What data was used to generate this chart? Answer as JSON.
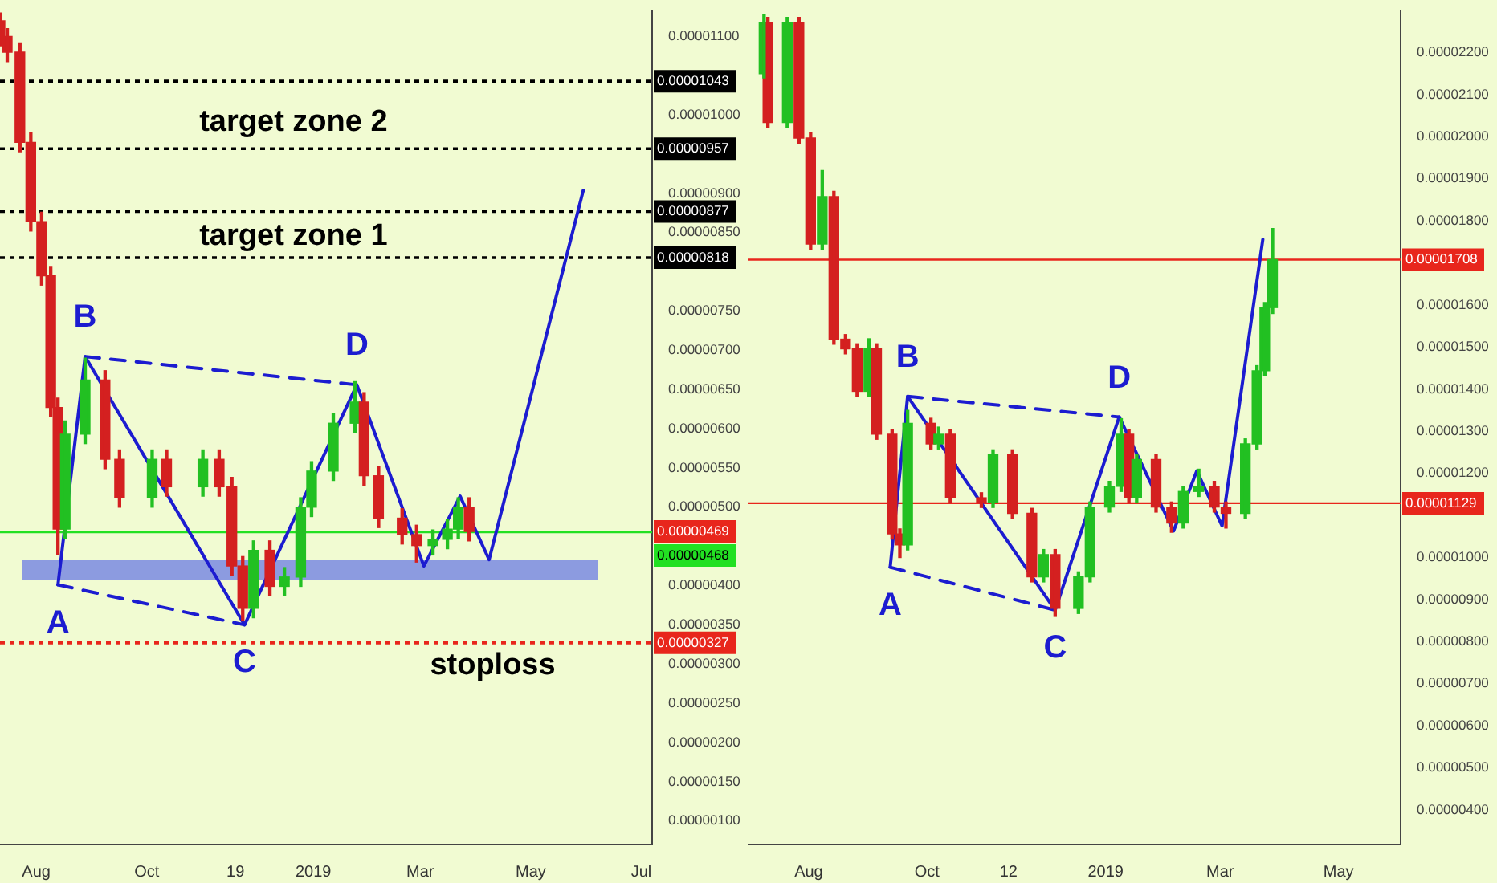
{
  "chart_data": [
    {
      "type": "candlestick",
      "x": [
        "2018-07-12",
        "2018-07-16",
        "2018-07-23",
        "2018-07-29",
        "2018-08-04",
        "2018-08-09",
        "2018-08-13",
        "2018-08-17",
        "2018-08-28",
        "2018-09-08",
        "2018-09-16",
        "2018-10-04",
        "2018-10-12",
        "2018-11-01",
        "2018-11-10",
        "2018-11-17",
        "2018-11-23",
        "2018-11-29",
        "2018-12-08",
        "2018-12-16",
        "2018-12-25",
        "2018-12-31",
        "2019-01-12",
        "2019-01-24",
        "2019-01-29",
        "2019-02-06",
        "2019-02-19",
        "2019-02-27",
        "2019-03-08",
        "2019-03-16",
        "2019-03-22",
        "2019-03-28"
      ],
      "ohlc": [
        [
          1.12e-05,
          1.13e-05,
          1.088e-05,
          1.1e-05
        ],
        [
          1.1e-05,
          1.11e-05,
          1.068e-05,
          1.08e-05
        ],
        [
          1.08e-05,
          1.092e-05,
          9.53e-06,
          9.65e-06
        ],
        [
          9.65e-06,
          9.77e-06,
          8.52e-06,
          8.64e-06
        ],
        [
          8.64e-06,
          8.76e-06,
          7.83e-06,
          7.95e-06
        ],
        [
          7.95e-06,
          8.07e-06,
          6.15e-06,
          6.27e-06
        ],
        [
          6.27e-06,
          6.39e-06,
          4.4e-06,
          4.72e-06
        ],
        [
          4.72e-06,
          6.1e-06,
          4.6e-06,
          5.93e-06
        ],
        [
          5.93e-06,
          6.9e-06,
          5.81e-06,
          6.62e-06
        ],
        [
          6.62e-06,
          6.74e-06,
          5.49e-06,
          5.61e-06
        ],
        [
          5.61e-06,
          5.73e-06,
          5e-06,
          5.12e-06
        ],
        [
          5.12e-06,
          5.73e-06,
          5e-06,
          5.61e-06
        ],
        [
          5.61e-06,
          5.73e-06,
          5.14e-06,
          5.26e-06
        ],
        [
          5.26e-06,
          5.73e-06,
          5.14e-06,
          5.61e-06
        ],
        [
          5.61e-06,
          5.73e-06,
          5.14e-06,
          5.26e-06
        ],
        [
          5.26e-06,
          5.38e-06,
          4.13e-06,
          4.25e-06
        ],
        [
          4.25e-06,
          4.37e-06,
          3.55e-06,
          3.71e-06
        ],
        [
          3.71e-06,
          4.57e-06,
          3.59e-06,
          4.45e-06
        ],
        [
          4.45e-06,
          4.57e-06,
          3.87e-06,
          3.99e-06
        ],
        [
          3.99e-06,
          4.23e-06,
          3.87e-06,
          4.11e-06
        ],
        [
          4.11e-06,
          5.12e-06,
          3.99e-06,
          5e-06
        ],
        [
          5e-06,
          5.58e-06,
          4.88e-06,
          5.46e-06
        ],
        [
          5.46e-06,
          6.19e-06,
          5.34e-06,
          6.07e-06
        ],
        [
          6.07e-06,
          6.6e-06,
          5.95e-06,
          6.34e-06
        ],
        [
          6.34e-06,
          6.46e-06,
          5.28e-06,
          5.4e-06
        ],
        [
          5.4e-06,
          5.52e-06,
          4.74e-06,
          4.86e-06
        ],
        [
          4.86e-06,
          4.98e-06,
          4.53e-06,
          4.65e-06
        ],
        [
          4.65e-06,
          4.77e-06,
          4.3e-06,
          4.51e-06
        ],
        [
          4.51e-06,
          4.71e-06,
          4.39e-06,
          4.59e-06
        ],
        [
          4.59e-06,
          4.84e-06,
          4.47e-06,
          4.72e-06
        ],
        [
          4.72e-06,
          5.12e-06,
          4.6e-06,
          5e-06
        ],
        [
          5e-06,
          5.12e-06,
          4.57e-06,
          4.69e-06
        ]
      ],
      "xlim": [
        "2018-07-12",
        "2019-07-07"
      ],
      "xticks": [
        {
          "value": "2018-08-01",
          "label": "Aug"
        },
        {
          "value": "2018-10-01",
          "label": "Oct"
        },
        {
          "value": "2018-11-19",
          "label": "19"
        },
        {
          "value": "2019-01-01",
          "label": "2019"
        },
        {
          "value": "2019-03-01",
          "label": "Mar"
        },
        {
          "value": "2019-05-01",
          "label": "May"
        },
        {
          "value": "2019-07-01",
          "label": "Jul"
        }
      ],
      "ylim": [
        7e-07,
        1.132e-05
      ],
      "yticks": [
        {
          "value": 1e-06,
          "label": "0.00000100"
        },
        {
          "value": 1.5e-06,
          "label": "0.00000150"
        },
        {
          "value": 2e-06,
          "label": "0.00000200"
        },
        {
          "value": 2.5e-06,
          "label": "0.00000250"
        },
        {
          "value": 3e-06,
          "label": "0.00000300"
        },
        {
          "value": 3.5e-06,
          "label": "0.00000350"
        },
        {
          "value": 4e-06,
          "label": "0.00000400"
        },
        {
          "value": 5e-06,
          "label": "0.00000500"
        },
        {
          "value": 5.5e-06,
          "label": "0.00000550"
        },
        {
          "value": 6e-06,
          "label": "0.00000600"
        },
        {
          "value": 6.5e-06,
          "label": "0.00000650"
        },
        {
          "value": 7e-06,
          "label": "0.00000700"
        },
        {
          "value": 7.5e-06,
          "label": "0.00000750"
        },
        {
          "value": 8.5e-06,
          "label": "0.00000850"
        },
        {
          "value": 9e-06,
          "label": "0.00000900"
        },
        {
          "value": 1e-05,
          "label": "0.00001000"
        },
        {
          "value": 1.1e-05,
          "label": "0.00001100"
        }
      ],
      "series": [
        {
          "type": "line",
          "color": "#1c1cd0",
          "x": [
            "2018-08-13",
            "2018-08-28",
            "2018-11-24",
            "2019-01-25",
            "2019-03-03",
            "2019-03-23",
            "2019-04-08",
            "2019-05-30"
          ],
          "values": [
            4.01e-06,
            6.92e-06,
            3.5e-06,
            6.56e-06,
            4.25e-06,
            5.14e-06,
            4.33e-06,
            9.04e-06
          ]
        },
        {
          "type": "line",
          "color": "#1c1cd0",
          "line_style": "dashed",
          "x": [
            "2018-08-28",
            "2019-01-25"
          ],
          "values": [
            6.92e-06,
            6.56e-06
          ]
        },
        {
          "type": "line",
          "color": "#1c1cd0",
          "line_style": "dashed",
          "x": [
            "2018-08-13",
            "2018-11-24"
          ],
          "values": [
            4.01e-06,
            3.5e-06
          ]
        }
      ],
      "ref_lines": [
        {
          "axis": "y",
          "value": 1.043e-05,
          "label": "0.00001043",
          "color": "#000000",
          "line_style": "dotted"
        },
        {
          "axis": "y",
          "value": 9.57e-06,
          "label": "0.00000957",
          "color": "#000000",
          "line_style": "dotted"
        },
        {
          "axis": "y",
          "value": 8.77e-06,
          "label": "0.00000877",
          "color": "#000000",
          "line_style": "dotted"
        },
        {
          "axis": "y",
          "value": 8.18e-06,
          "label": "0.00000818",
          "color": "#000000",
          "line_style": "dotted"
        },
        {
          "axis": "y",
          "value": 4.69e-06,
          "label": "0.00000469",
          "color": "#e8261c",
          "line_style": "solid"
        },
        {
          "axis": "y",
          "value": 4.68e-06,
          "label": "0.00000468",
          "color": "#22e022",
          "line_style": "solid"
        },
        {
          "axis": "y",
          "value": 3.27e-06,
          "label": "0.00000327",
          "color": "#e8261c",
          "line_style": "dotted"
        }
      ],
      "bands": [
        {
          "axis": "y",
          "from": 4.07e-06,
          "to": 4.33e-06,
          "color": "#8c9be0"
        }
      ],
      "annotations": [
        "target zone 2",
        "target zone 1",
        {
          "text": "stoploss",
          "x": "2019-04-10",
          "y": 3.27e-06
        },
        {
          "text": "A",
          "x": "2018-08-13",
          "y": 4.01e-06
        },
        {
          "text": "B",
          "x": "2018-08-28",
          "y": 6.92e-06
        },
        {
          "text": "C",
          "x": "2018-11-24",
          "y": 3.5e-06
        },
        {
          "text": "D",
          "x": "2019-01-25",
          "y": 6.56e-06
        }
      ]
    },
    {
      "type": "candlestick",
      "x": [
        "2018-07-09",
        "2018-07-11",
        "2018-07-21",
        "2018-07-27",
        "2018-08-02",
        "2018-08-08",
        "2018-08-14",
        "2018-08-20",
        "2018-08-26",
        "2018-09-01",
        "2018-09-05",
        "2018-09-13",
        "2018-09-17",
        "2018-09-21",
        "2018-10-03",
        "2018-10-07",
        "2018-10-13",
        "2018-10-29",
        "2018-11-04",
        "2018-11-14",
        "2018-11-24",
        "2018-11-30",
        "2018-12-06",
        "2018-12-18",
        "2018-12-24",
        "2019-01-03",
        "2019-01-09",
        "2019-01-13",
        "2019-01-17",
        "2019-01-27",
        "2019-02-04",
        "2019-02-10",
        "2019-02-18",
        "2019-02-26",
        "2019-03-04",
        "2019-03-14",
        "2019-03-20",
        "2019-03-24",
        "2019-03-28"
      ],
      "ohlc": [
        [
          2.15e-05,
          2.29e-05,
          2.14e-05,
          2.272e-05
        ],
        [
          2.272e-05,
          2.284e-05,
          2.022e-05,
          2.034e-05
        ],
        [
          2.034e-05,
          2.284e-05,
          2.022e-05,
          2.272e-05
        ],
        [
          2.272e-05,
          2.284e-05,
          1.985e-05,
          1.997e-05
        ],
        [
          1.997e-05,
          2.009e-05,
          1.733e-05,
          1.745e-05
        ],
        [
          1.745e-05,
          1.92e-05,
          1.733e-05,
          1.858e-05
        ],
        [
          1.858e-05,
          1.87e-05,
          1.507e-05,
          1.519e-05
        ],
        [
          1.519e-05,
          1.53e-05,
          1.484e-05,
          1.496e-05
        ],
        [
          1.496e-05,
          1.508e-05,
          1.383e-05,
          1.395e-05
        ],
        [
          1.395e-05,
          1.52e-05,
          1.383e-05,
          1.496e-05
        ],
        [
          1.496e-05,
          1.508e-05,
          1.281e-05,
          1.293e-05
        ],
        [
          1.293e-05,
          1.305e-05,
          1.044e-05,
          1.056e-05
        ],
        [
          1.056e-05,
          1.068e-05,
          1e-05,
          1.03e-05
        ],
        [
          1.03e-05,
          1.35e-05,
          1.018e-05,
          1.319e-05
        ],
        [
          1.319e-05,
          1.331e-05,
          1.258e-05,
          1.27e-05
        ],
        [
          1.27e-05,
          1.31e-05,
          1.258e-05,
          1.293e-05
        ],
        [
          1.293e-05,
          1.305e-05,
          1.13e-05,
          1.142e-05
        ],
        [
          1.142e-05,
          1.154e-05,
          1.119e-05,
          1.131e-05
        ],
        [
          1.131e-05,
          1.256e-05,
          1.119e-05,
          1.244e-05
        ],
        [
          1.244e-05,
          1.256e-05,
          1.093e-05,
          1.105e-05
        ],
        [
          1.105e-05,
          1.117e-05,
          9.42e-06,
          9.54e-06
        ],
        [
          9.54e-06,
          1.019e-05,
          9.42e-06,
          1.007e-05
        ],
        [
          1.007e-05,
          1.019e-05,
          8.6e-06,
          8.79e-06
        ],
        [
          8.79e-06,
          9.66e-06,
          8.67e-06,
          9.54e-06
        ],
        [
          9.54e-06,
          1.132e-05,
          9.42e-06,
          1.12e-05
        ],
        [
          1.12e-05,
          1.181e-05,
          1.108e-05,
          1.169e-05
        ],
        [
          1.169e-05,
          1.33e-05,
          1.157e-05,
          1.293e-05
        ],
        [
          1.293e-05,
          1.305e-05,
          1.13e-05,
          1.142e-05
        ],
        [
          1.142e-05,
          1.245e-05,
          1.13e-05,
          1.233e-05
        ],
        [
          1.233e-05,
          1.245e-05,
          1.108e-05,
          1.12e-05
        ],
        [
          1.12e-05,
          1.132e-05,
          1.06e-05,
          1.082e-05
        ],
        [
          1.082e-05,
          1.169e-05,
          1.07e-05,
          1.157e-05
        ],
        [
          1.157e-05,
          1.21e-05,
          1.145e-05,
          1.169e-05
        ],
        [
          1.169e-05,
          1.181e-05,
          1.108e-05,
          1.12e-05
        ],
        [
          1.12e-05,
          1.132e-05,
          1.07e-05,
          1.105e-05
        ],
        [
          1.105e-05,
          1.282e-05,
          1.093e-05,
          1.27e-05
        ],
        [
          1.27e-05,
          1.456e-05,
          1.258e-05,
          1.444e-05
        ],
        [
          1.444e-05,
          1.606e-05,
          1.432e-05,
          1.594e-05
        ],
        [
          1.594e-05,
          1.782e-05,
          1.58e-05,
          1.708e-05
        ]
      ],
      "xlim": [
        "2018-07-01",
        "2019-06-02"
      ],
      "xticks": [
        {
          "value": "2018-08-01",
          "label": "Aug"
        },
        {
          "value": "2018-10-01",
          "label": "Oct"
        },
        {
          "value": "2018-11-12",
          "label": "12"
        },
        {
          "value": "2019-01-01",
          "label": "2019"
        },
        {
          "value": "2019-03-01",
          "label": "Mar"
        },
        {
          "value": "2019-05-01",
          "label": "May"
        }
      ],
      "ylim": [
        3.18e-06,
        2.298e-05
      ],
      "yticks": [
        {
          "value": 4e-06,
          "label": "0.00000400"
        },
        {
          "value": 5e-06,
          "label": "0.00000500"
        },
        {
          "value": 6e-06,
          "label": "0.00000600"
        },
        {
          "value": 7e-06,
          "label": "0.00000700"
        },
        {
          "value": 8e-06,
          "label": "0.00000800"
        },
        {
          "value": 9e-06,
          "label": "0.00000900"
        },
        {
          "value": 1e-05,
          "label": "0.00001000"
        },
        {
          "value": 1.2e-05,
          "label": "0.00001200"
        },
        {
          "value": 1.3e-05,
          "label": "0.00001300"
        },
        {
          "value": 1.4e-05,
          "label": "0.00001400"
        },
        {
          "value": 1.5e-05,
          "label": "0.00001500"
        },
        {
          "value": 1.6e-05,
          "label": "0.00001600"
        },
        {
          "value": 1.8e-05,
          "label": "0.00001800"
        },
        {
          "value": 1.9e-05,
          "label": "0.00001900"
        },
        {
          "value": 2e-05,
          "label": "0.00002000"
        },
        {
          "value": 2.1e-05,
          "label": "0.00002100"
        },
        {
          "value": 2.2e-05,
          "label": "0.00002200"
        }
      ],
      "series": [
        {
          "type": "line",
          "color": "#1c1cd0",
          "x": [
            "2018-09-12",
            "2018-09-21",
            "2018-12-06",
            "2019-01-08",
            "2019-02-05",
            "2019-02-17",
            "2019-03-02",
            "2019-03-23"
          ],
          "values": [
            9.77e-06,
            1.383e-05,
            8.75e-06,
            1.334e-05,
            1.063e-05,
            1.206e-05,
            1.075e-05,
            1.756e-05
          ]
        },
        {
          "type": "line",
          "color": "#1c1cd0",
          "line_style": "dashed",
          "x": [
            "2018-09-21",
            "2019-01-08"
          ],
          "values": [
            1.383e-05,
            1.334e-05
          ]
        },
        {
          "type": "line",
          "color": "#1c1cd0",
          "line_style": "dashed",
          "x": [
            "2018-09-12",
            "2018-12-06"
          ],
          "values": [
            9.77e-06,
            8.75e-06
          ]
        }
      ],
      "ref_lines": [
        {
          "axis": "y",
          "value": 1.708e-05,
          "label": "0.00001708",
          "color": "#e8261c",
          "line_style": "solid"
        },
        {
          "axis": "y",
          "value": 1.129e-05,
          "label": "0.00001129",
          "color": "#e8261c",
          "line_style": "solid"
        }
      ],
      "annotations": [
        {
          "text": "A",
          "x": "2018-09-12",
          "y": 9.77e-06
        },
        {
          "text": "B",
          "x": "2018-09-21",
          "y": 1.383e-05
        },
        {
          "text": "C",
          "x": "2018-12-06",
          "y": 8.75e-06
        },
        {
          "text": "D",
          "x": "2019-01-08",
          "y": 1.334e-05
        }
      ]
    }
  ]
}
